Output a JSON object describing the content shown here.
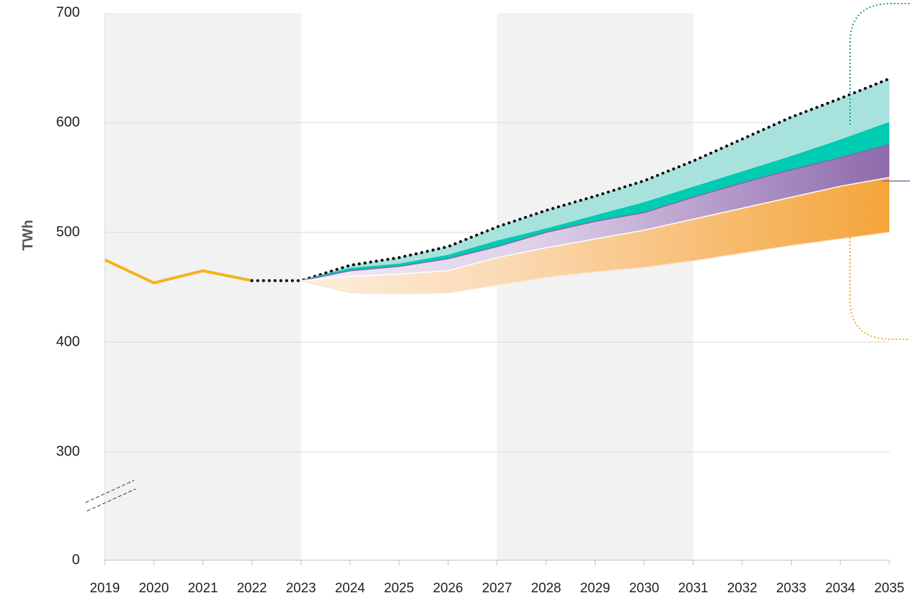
{
  "chart_data": {
    "type": "line",
    "y_label": "TWh",
    "x": [
      2019,
      2020,
      2021,
      2022,
      2023,
      2024,
      2025,
      2026,
      2027,
      2028,
      2029,
      2030,
      2031,
      2032,
      2033,
      2034,
      2035
    ],
    "xlim": [
      2019,
      2035
    ],
    "xticks": [
      2019,
      2020,
      2021,
      2022,
      2023,
      2024,
      2025,
      2026,
      2027,
      2028,
      2029,
      2030,
      2031,
      2032,
      2033,
      2034,
      2035
    ],
    "ylim": [
      0,
      700
    ],
    "yticks": [
      0,
      300,
      400,
      500,
      600,
      700
    ],
    "axis_break": true,
    "grid": true,
    "shaded_periods": [
      [
        2019,
        2023
      ],
      [
        2027,
        2031
      ]
    ],
    "series": [
      {
        "color": "#f5b21b",
        "style": "solid",
        "values": [
          475,
          454,
          465,
          456,
          null,
          null,
          null,
          null,
          null,
          null,
          null,
          null,
          null,
          null,
          null,
          null,
          null
        ]
      },
      {
        "color": "#000000",
        "style": "dotted",
        "fill": "#a8e2dc",
        "values": [
          null,
          null,
          null,
          456,
          456,
          470,
          477,
          487,
          505,
          520,
          533,
          547,
          565,
          585,
          605,
          622,
          640
        ]
      },
      {
        "color": "#00c9b1",
        "style": "edge",
        "fill": "#00cbb3",
        "values": [
          null,
          null,
          null,
          null,
          456,
          467,
          471,
          479,
          492,
          503,
          515,
          527,
          541,
          555,
          569,
          584,
          600
        ]
      },
      {
        "color": "#8a64a8",
        "style": "edge",
        "fill": "#8e6aac",
        "values": [
          null,
          null,
          null,
          null,
          456,
          465,
          469,
          476,
          487,
          500,
          510,
          518,
          532,
          545,
          557,
          568,
          580
        ]
      },
      {
        "color": "#ffffff",
        "style": "edge",
        "fill": "#f4a53a",
        "values": [
          null,
          null,
          null,
          null,
          456,
          460,
          462,
          465,
          477,
          486,
          494,
          502,
          512,
          522,
          532,
          542,
          550
        ]
      },
      {
        "color": "#fbe3cc",
        "style": "edge",
        "values": [
          null,
          null,
          null,
          null,
          456,
          445,
          444,
          445,
          452,
          459,
          464,
          468,
          474,
          481,
          488,
          494,
          500
        ]
      }
    ]
  }
}
